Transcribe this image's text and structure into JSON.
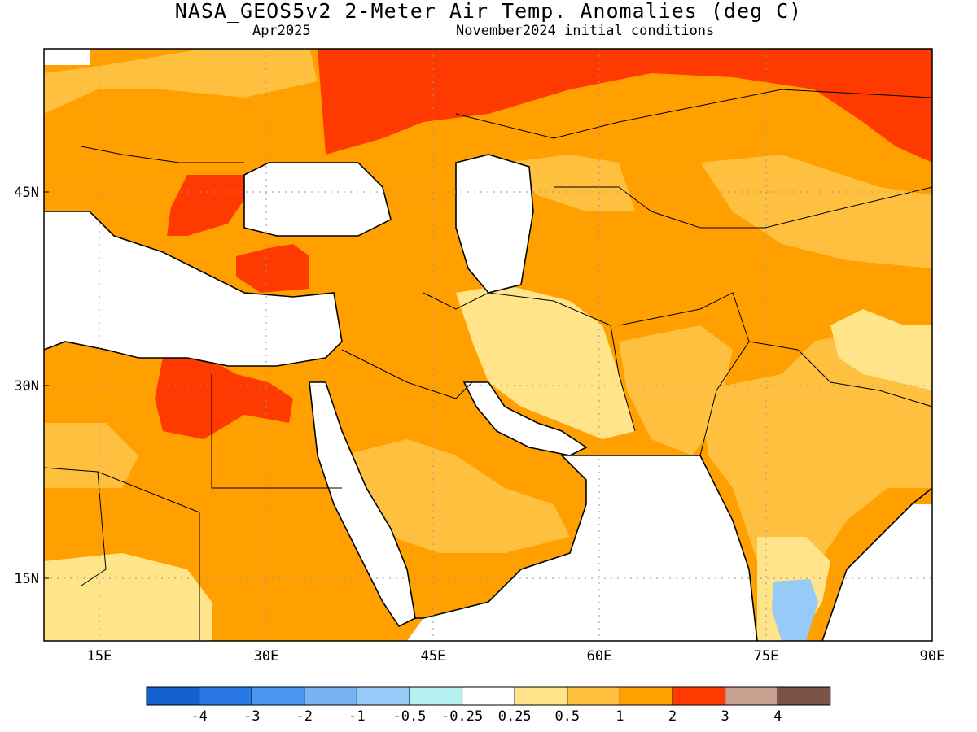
{
  "header": {
    "title": "NASA_GEOS5v2 2-Meter Air Temp. Anomalies (deg C)",
    "forecast_month": "Apr2025",
    "initial_conditions": "November2024 initial conditions"
  },
  "map": {
    "lon_range": [
      10,
      90
    ],
    "lat_range": [
      10,
      56
    ],
    "lat_ticks": [
      {
        "value": 45,
        "label": "45N"
      },
      {
        "value": 30,
        "label": "30N"
      },
      {
        "value": 15,
        "label": "15N"
      }
    ],
    "lon_ticks": [
      {
        "value": 15,
        "label": "15E"
      },
      {
        "value": 30,
        "label": "30E"
      },
      {
        "value": 45,
        "label": "45E"
      },
      {
        "value": 60,
        "label": "60E"
      },
      {
        "value": 75,
        "label": "75E"
      },
      {
        "value": 90,
        "label": "90E"
      }
    ],
    "grid": "dotted"
  },
  "colorbar": {
    "colors": [
      "#1560d0",
      "#2a78e6",
      "#4a96f0",
      "#78b4f5",
      "#96caf7",
      "#b4f0f0",
      "#ffffff",
      "#ffe48a",
      "#ffc040",
      "#ffa000",
      "#ff3a00",
      "#c8a090",
      "#7a5446"
    ],
    "labels": [
      "-4",
      "-3",
      "-2",
      "-1",
      "-0.5",
      "-0.25",
      "0.25",
      "0.5",
      "1",
      "2",
      "3",
      "4"
    ]
  }
}
